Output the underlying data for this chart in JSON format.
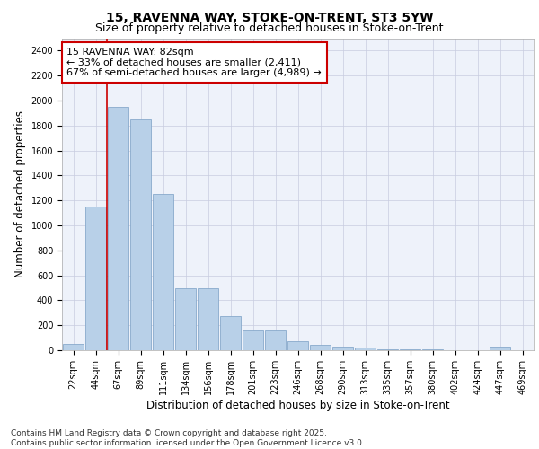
{
  "title_line1": "15, RAVENNA WAY, STOKE-ON-TRENT, ST3 5YW",
  "title_line2": "Size of property relative to detached houses in Stoke-on-Trent",
  "xlabel": "Distribution of detached houses by size in Stoke-on-Trent",
  "ylabel": "Number of detached properties",
  "categories": [
    "22sqm",
    "44sqm",
    "67sqm",
    "89sqm",
    "111sqm",
    "134sqm",
    "156sqm",
    "178sqm",
    "201sqm",
    "223sqm",
    "246sqm",
    "268sqm",
    "290sqm",
    "313sqm",
    "335sqm",
    "357sqm",
    "380sqm",
    "402sqm",
    "424sqm",
    "447sqm",
    "469sqm"
  ],
  "values": [
    50,
    1150,
    1950,
    1850,
    1250,
    500,
    500,
    270,
    160,
    160,
    75,
    40,
    30,
    25,
    10,
    8,
    5,
    3,
    3,
    30,
    3
  ],
  "bar_color": "#b8d0e8",
  "bar_edge_color": "#88aacc",
  "background_color": "#eef2fa",
  "grid_color": "#c8cce0",
  "annotation_text": "15 RAVENNA WAY: 82sqm\n← 33% of detached houses are smaller (2,411)\n67% of semi-detached houses are larger (4,989) →",
  "annotation_box_facecolor": "#ffffff",
  "annotation_box_edgecolor": "#cc0000",
  "vline_x": 1.5,
  "vline_color": "#cc0000",
  "ylim": [
    0,
    2500
  ],
  "yticks": [
    0,
    200,
    400,
    600,
    800,
    1000,
    1200,
    1400,
    1600,
    1800,
    2000,
    2200,
    2400
  ],
  "footer_text": "Contains HM Land Registry data © Crown copyright and database right 2025.\nContains public sector information licensed under the Open Government Licence v3.0.",
  "title_fontsize": 10,
  "subtitle_fontsize": 9,
  "axis_label_fontsize": 8.5,
  "tick_fontsize": 7,
  "annotation_fontsize": 8,
  "footer_fontsize": 6.5
}
